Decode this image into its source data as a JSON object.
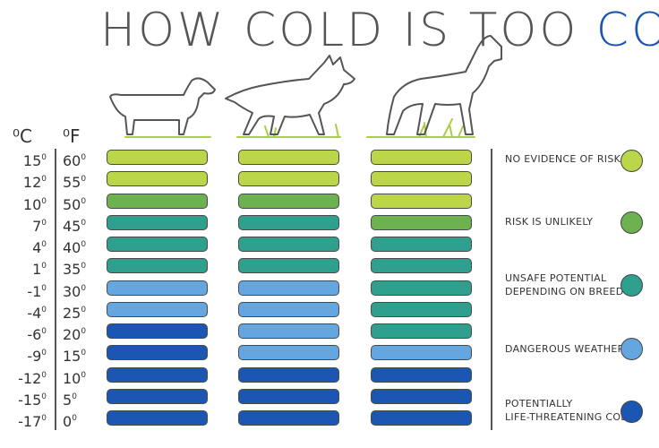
{
  "title": {
    "part1": "HOW COLD IS TOO ",
    "part2": "COLD",
    "part3": "?"
  },
  "headers": {
    "celsius": "⁰C",
    "fahrenheit": "⁰F"
  },
  "colors": {
    "0": "#bcd64a",
    "1": "#6cb24e",
    "2": "#2f9f8e",
    "3": "#64a7e0",
    "4": "#1b57b2",
    "title_blue": "#1a56b0"
  },
  "rows": [
    {
      "c": "15",
      "f": "60"
    },
    {
      "c": "12",
      "f": "55"
    },
    {
      "c": "10",
      "f": "50"
    },
    {
      "c": "7",
      "f": "45"
    },
    {
      "c": "4",
      "f": "40"
    },
    {
      "c": "1",
      "f": "35"
    },
    {
      "c": "-1",
      "f": "30"
    },
    {
      "c": "-4",
      "f": "25"
    },
    {
      "c": "-6",
      "f": "20"
    },
    {
      "c": "-9",
      "f": "15"
    },
    {
      "c": "-12",
      "f": "10"
    },
    {
      "c": "-15",
      "f": "5"
    },
    {
      "c": "-17",
      "f": "0"
    }
  ],
  "dogs": [
    {
      "icon": "small-dog-icon",
      "risk_levels": [
        0,
        0,
        1,
        2,
        2,
        2,
        3,
        3,
        4,
        4,
        4,
        4,
        4
      ]
    },
    {
      "icon": "medium-dog-icon",
      "risk_levels": [
        0,
        0,
        1,
        2,
        2,
        2,
        3,
        3,
        3,
        3,
        4,
        4,
        4
      ]
    },
    {
      "icon": "large-dog-icon",
      "risk_levels": [
        0,
        0,
        0,
        1,
        2,
        2,
        2,
        2,
        2,
        3,
        4,
        4,
        4
      ]
    }
  ],
  "legend": [
    {
      "label": "NO EVIDENCE OF RISK",
      "level": 0
    },
    {
      "label": "RISK IS UNLIKELY",
      "level": 1
    },
    {
      "label": "UNSAFE POTENTIAL\nDEPENDING ON BREED",
      "level": 2
    },
    {
      "label": "DANGEROUS WEATHER",
      "level": 3
    },
    {
      "label": "POTENTIALLY\nLIFE-THREATENING COLD",
      "level": 4
    }
  ]
}
